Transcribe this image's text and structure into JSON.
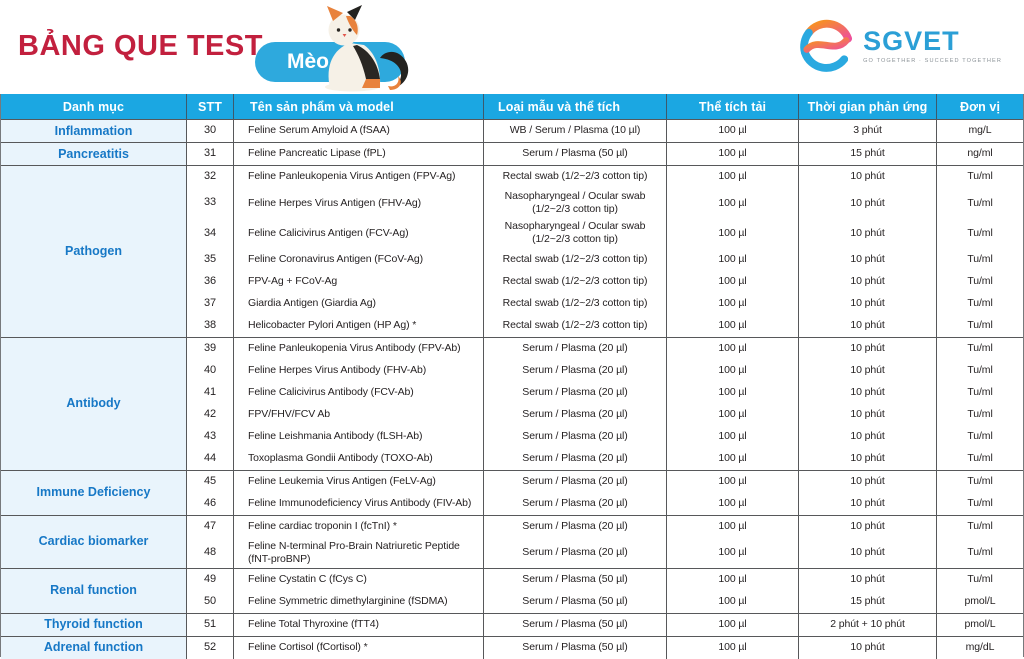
{
  "page": {
    "title": "BẢNG QUE TEST",
    "species_label": "Mèo"
  },
  "logo": {
    "name": "SGVET",
    "tagline": "GO TOGETHER · SUCCEED TOGETHER"
  },
  "colors": {
    "header_blue": "#1ba7e2",
    "title_red": "#c2203e",
    "pill_blue": "#2ea9dd",
    "category_text_blue": "#1778c6",
    "category_bg": "#e9f4fc"
  },
  "table": {
    "headers": [
      "Danh mục",
      "STT",
      "Tên sản phẩm và model",
      "Loại mẫu và thể tích",
      "Thể tích tải",
      "Thời gian phản ứng",
      "Đơn vị"
    ],
    "groups": [
      {
        "category": "Inflammation",
        "rows": [
          {
            "stt": "30",
            "product": "Feline Serum Amyloid A (fSAA)",
            "sample": "WB / Serum / Plasma (10 µl)",
            "load": "100 µl",
            "time": "3 phút",
            "unit": "mg/L"
          }
        ]
      },
      {
        "category": "Pancreatitis",
        "rows": [
          {
            "stt": "31",
            "product": "Feline Pancreatic Lipase (fPL)",
            "sample": "Serum / Plasma (50 µl)",
            "load": "100 µl",
            "time": "15 phút",
            "unit": "ng/ml"
          }
        ]
      },
      {
        "category": "Pathogen",
        "rows": [
          {
            "stt": "32",
            "product": "Feline Panleukopenia Virus Antigen (FPV-Ag)",
            "sample": "Rectal swab (1/2~2/3 cotton tip)",
            "load": "100 µl",
            "time": "10 phút",
            "unit": "Tu/ml"
          },
          {
            "stt": "33",
            "product": "Feline Herpes Virus Antigen (FHV-Ag)",
            "sample": "Nasopharyngeal / Ocular swab (1/2~2/3 cotton tip)",
            "load": "100 µl",
            "time": "10 phút",
            "unit": "Tu/ml"
          },
          {
            "stt": "34",
            "product": "Feline Calicivirus Antigen (FCV-Ag)",
            "sample": "Nasopharyngeal / Ocular swab (1/2~2/3 cotton tip)",
            "load": "100 µl",
            "time": "10 phút",
            "unit": "Tu/ml"
          },
          {
            "stt": "35",
            "product": "Feline Coronavirus Antigen (FCoV-Ag)",
            "sample": "Rectal swab (1/2~2/3 cotton tip)",
            "load": "100 µl",
            "time": "10 phút",
            "unit": "Tu/ml"
          },
          {
            "stt": "36",
            "product": "FPV-Ag + FCoV-Ag",
            "sample": "Rectal swab (1/2~2/3 cotton tip)",
            "load": "100 µl",
            "time": "10 phút",
            "unit": "Tu/ml"
          },
          {
            "stt": "37",
            "product": "Giardia Antigen (Giardia Ag)",
            "sample": "Rectal swab (1/2~2/3 cotton tip)",
            "load": "100 µl",
            "time": "10 phút",
            "unit": "Tu/ml"
          },
          {
            "stt": "38",
            "product": "Helicobacter Pylori Antigen (HP Ag) *",
            "sample": "Rectal swab (1/2~2/3 cotton tip)",
            "load": "100 µl",
            "time": "10 phút",
            "unit": "Tu/ml"
          }
        ]
      },
      {
        "category": "Antibody",
        "rows": [
          {
            "stt": "39",
            "product": "Feline Panleukopenia Virus Antibody (FPV-Ab)",
            "sample": "Serum / Plasma (20 µl)",
            "load": "100 µl",
            "time": "10 phút",
            "unit": "Tu/ml"
          },
          {
            "stt": "40",
            "product": "Feline Herpes Virus Antibody (FHV-Ab)",
            "sample": "Serum / Plasma (20 µl)",
            "load": "100 µl",
            "time": "10 phút",
            "unit": "Tu/ml"
          },
          {
            "stt": "41",
            "product": "Feline Calicivirus Antibody (FCV-Ab)",
            "sample": "Serum / Plasma (20 µl)",
            "load": "100 µl",
            "time": "10 phút",
            "unit": "Tu/ml"
          },
          {
            "stt": "42",
            "product": "FPV/FHV/FCV Ab",
            "sample": "Serum / Plasma (20 µl)",
            "load": "100 µl",
            "time": "10 phút",
            "unit": "Tu/ml"
          },
          {
            "stt": "43",
            "product": "Feline Leishmania Antibody (fLSH-Ab)",
            "sample": "Serum / Plasma (20 µl)",
            "load": "100 µl",
            "time": "10 phút",
            "unit": "Tu/ml"
          },
          {
            "stt": "44",
            "product": "Toxoplasma Gondii Antibody (TOXO-Ab)",
            "sample": "Serum / Plasma (20 µl)",
            "load": "100 µl",
            "time": "10 phút",
            "unit": "Tu/ml"
          }
        ]
      },
      {
        "category": "Immune Deficiency",
        "rows": [
          {
            "stt": "45",
            "product": "Feline Leukemia Virus Antigen (FeLV-Ag)",
            "sample": "Serum / Plasma (20 µl)",
            "load": "100 µl",
            "time": "10 phút",
            "unit": "Tu/ml"
          },
          {
            "stt": "46",
            "product": "Feline Immunodeficiency Virus Antibody (FIV-Ab)",
            "sample": "Serum / Plasma (20 µl)",
            "load": "100 µl",
            "time": "10 phút",
            "unit": "Tu/ml"
          }
        ]
      },
      {
        "category": "Cardiac biomarker",
        "rows": [
          {
            "stt": "47",
            "product": "Feline cardiac troponin I (fcTnI) *",
            "sample": "Serum / Plasma (20 µl)",
            "load": "100 µl",
            "time": "10 phút",
            "unit": "Tu/ml"
          },
          {
            "stt": "48",
            "product": "Feline N-terminal Pro-Brain Natriuretic Peptide (fNT-proBNP)",
            "sample": "Serum / Plasma (20 µl)",
            "load": "100 µl",
            "time": "10 phút",
            "unit": "Tu/ml"
          }
        ]
      },
      {
        "category": "Renal function",
        "rows": [
          {
            "stt": "49",
            "product": "Feline Cystatin C (fCys C)",
            "sample": "Serum / Plasma (50 µl)",
            "load": "100 µl",
            "time": "10 phút",
            "unit": "Tu/ml"
          },
          {
            "stt": "50",
            "product": "Feline Symmetric dimethylarginine (fSDMA)",
            "sample": "Serum / Plasma (50 µl)",
            "load": "100 µl",
            "time": "15 phút",
            "unit": "pmol/L"
          }
        ]
      },
      {
        "category": "Thyroid function",
        "rows": [
          {
            "stt": "51",
            "product": "Feline Total Thyroxine (fTT4)",
            "sample": "Serum / Plasma (50 µl)",
            "load": "100 µl",
            "time": "2 phút + 10 phút",
            "unit": "pmol/L"
          }
        ]
      },
      {
        "category": "Adrenal function",
        "rows": [
          {
            "stt": "52",
            "product": "Feline Cortisol (fCortisol) *",
            "sample": "Serum / Plasma (50 µl)",
            "load": "100 µl",
            "time": "10 phút",
            "unit": "mg/dL"
          }
        ]
      }
    ]
  }
}
